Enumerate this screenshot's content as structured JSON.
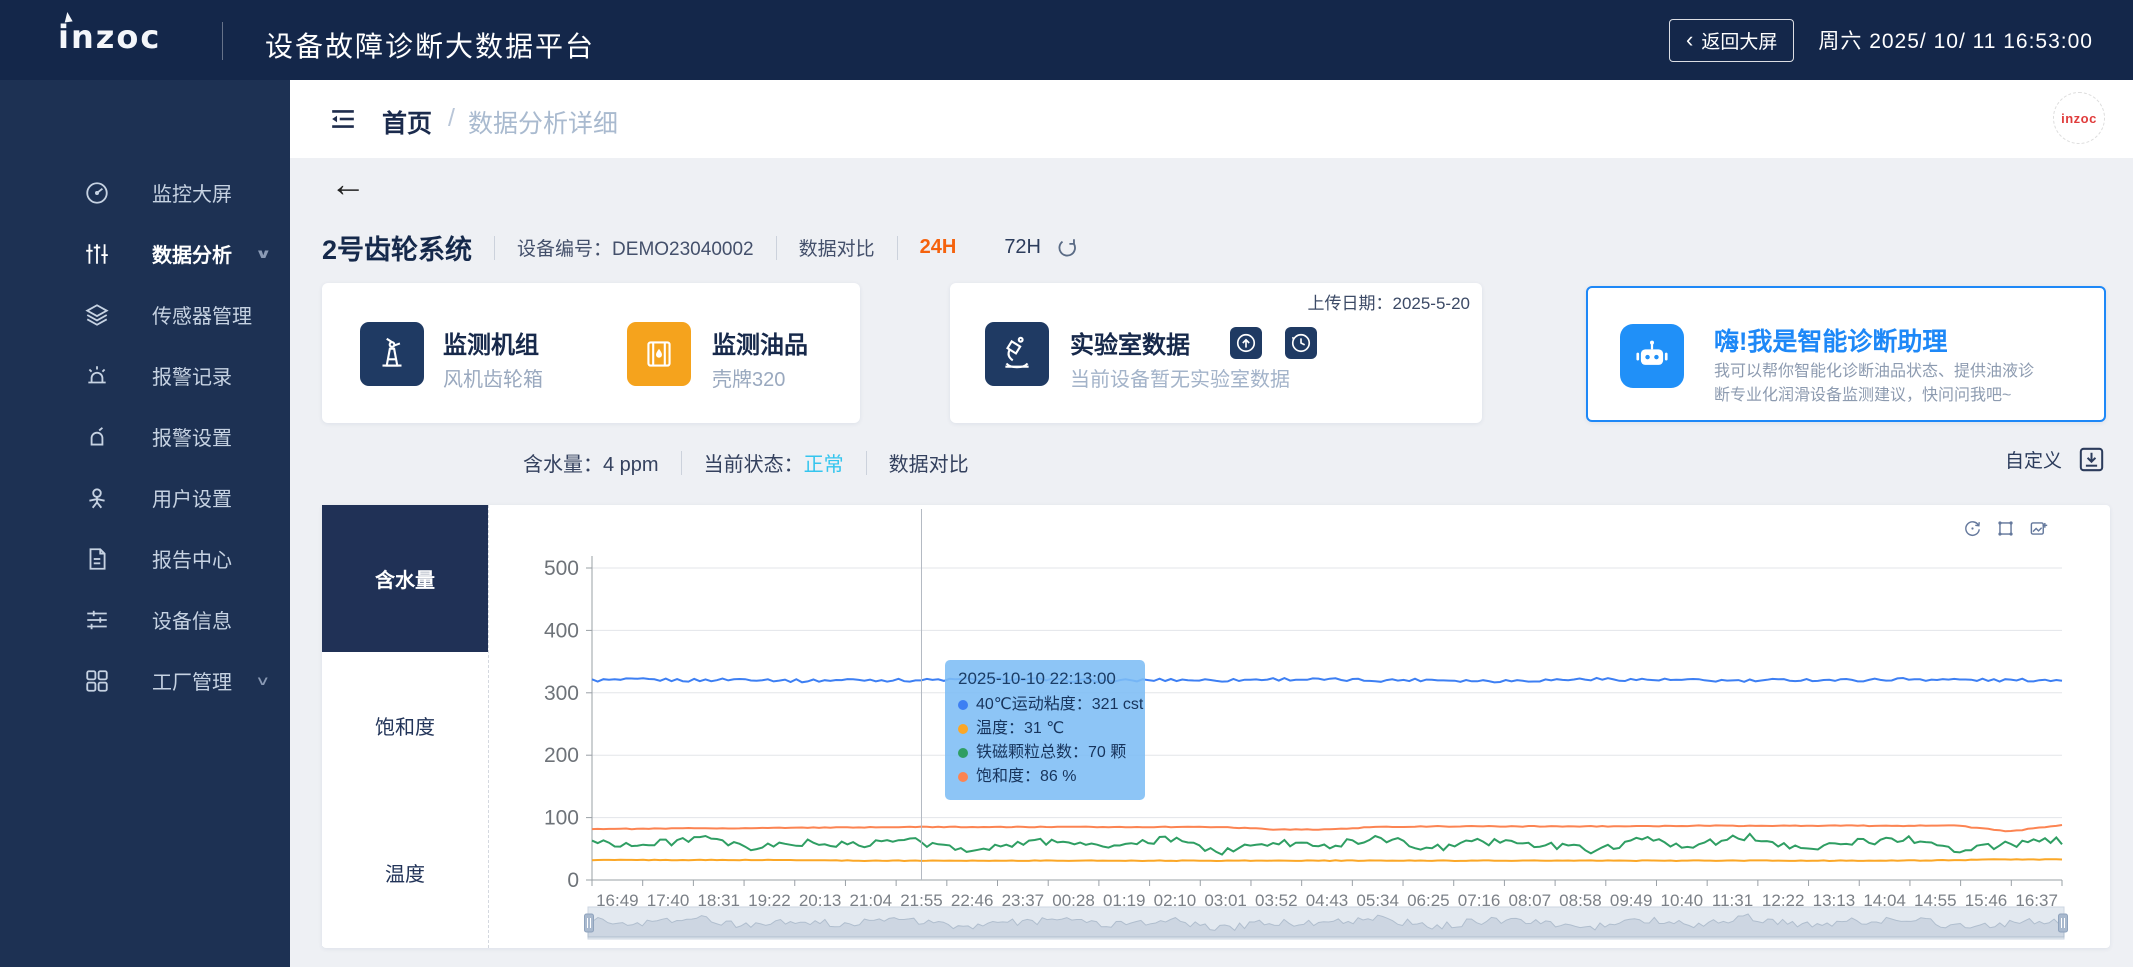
{
  "header": {
    "logo": "inzoc",
    "title": "设备故障诊断大数据平台",
    "back_chevron": "‹",
    "back_button": "返回大屏",
    "datetime": "周六 2025/ 10/ 11 16:53:00"
  },
  "sidebar": {
    "items": [
      {
        "label": "监控大屏",
        "icon": "gauge-icon"
      },
      {
        "label": "数据分析",
        "icon": "analysis-sliders-icon",
        "active": true,
        "chevron": "∨"
      },
      {
        "label": "传感器管理",
        "icon": "layers-icon"
      },
      {
        "label": "报警记录",
        "icon": "siren-icon"
      },
      {
        "label": "报警设置",
        "icon": "alarm-bell-icon"
      },
      {
        "label": "用户设置",
        "icon": "user-icon"
      },
      {
        "label": "报告中心",
        "icon": "report-icon"
      },
      {
        "label": "设备信息",
        "icon": "device-sliders-icon"
      },
      {
        "label": "工厂管理",
        "icon": "grid-icon",
        "chevron": "∨"
      }
    ]
  },
  "breadcrumb": {
    "home": "首页",
    "sep": "/",
    "current": "数据分析详细",
    "avatar_text": "inzoc"
  },
  "device": {
    "back_arrow": "←",
    "name": "2号齿轮系统",
    "code_label": "设备编号：",
    "code": "DEMO23040002",
    "compare": "数据对比",
    "range_24h": "24H",
    "range_72h": "72H"
  },
  "cards": {
    "unit": {
      "title": "监测机组",
      "sub": "风机齿轮箱"
    },
    "oil": {
      "title": "监测油品",
      "sub": "壳牌320"
    },
    "lab": {
      "date_label": "上传日期：",
      "date": "2025-5-20",
      "title": "实验室数据",
      "sub": "当前设备暂无实验室数据"
    },
    "assistant": {
      "title": "嗨!我是智能诊断助理",
      "desc1": "我可以帮你智能化诊断油品状态、提供油液诊",
      "desc2": "断专业化润滑设备监测建议，快问问我吧~"
    }
  },
  "status": {
    "water_label": "含水量：",
    "water_value": "4 ppm",
    "state_label": "当前状态：",
    "state_value": "正常",
    "state_color": "#35c5ee",
    "compare": "数据对比",
    "custom": "自定义"
  },
  "chart_data": {
    "type": "line",
    "tabs": [
      "含水量",
      "饱和度",
      "温度"
    ],
    "active_tab": "含水量",
    "grid": true,
    "legend_position": "none",
    "ylim": [
      0,
      500
    ],
    "y_ticks": [
      0,
      100,
      200,
      300,
      400,
      500
    ],
    "x_labels": [
      "16:49",
      "17:40",
      "18:31",
      "19:22",
      "20:13",
      "21:04",
      "21:55",
      "22:46",
      "23:37",
      "00:28",
      "01:19",
      "02:10",
      "03:01",
      "03:52",
      "04:43",
      "05:34",
      "06:25",
      "07:16",
      "08:07",
      "08:58",
      "09:49",
      "10:40",
      "11:31",
      "12:22",
      "13:13",
      "14:04",
      "14:55",
      "15:46",
      "16:37"
    ],
    "series": [
      {
        "name": "40℃运动粘度",
        "unit": "cst",
        "color": "#3d7ff3",
        "jitter": 2.5,
        "values": [
          320,
          321,
          320,
          322,
          319,
          321,
          320,
          321,
          322,
          320,
          319,
          321,
          320,
          322,
          321,
          320,
          321,
          319,
          320,
          322,
          321,
          320,
          319,
          321,
          320,
          322,
          321,
          320,
          321
        ]
      },
      {
        "name": "温度",
        "unit": "℃",
        "color": "#fba727",
        "jitter": 0.5,
        "values": [
          32,
          32,
          32,
          32,
          32,
          31,
          31,
          31,
          31,
          31,
          31,
          31,
          31,
          31,
          31,
          31,
          31,
          31,
          31,
          31,
          31,
          31,
          31,
          31,
          31,
          31,
          32,
          33,
          33
        ]
      },
      {
        "name": "铁磁颗粒总数",
        "unit": "颗",
        "color": "#2f9e63",
        "jitter": 6,
        "values": [
          62,
          55,
          68,
          50,
          60,
          55,
          65,
          48,
          58,
          63,
          52,
          66,
          45,
          60,
          55,
          68,
          50,
          62,
          57,
          48,
          64,
          55,
          70,
          52,
          60,
          66,
          49,
          58,
          63
        ]
      },
      {
        "name": "饱和度",
        "unit": "%",
        "color": "#fc8452",
        "jitter": 0.6,
        "values": [
          82,
          82,
          83,
          83,
          84,
          84,
          85,
          85,
          85,
          85,
          85,
          85,
          85,
          81,
          81,
          85,
          86,
          86,
          86,
          86,
          86,
          87,
          87,
          87,
          87,
          87,
          87,
          78,
          88
        ]
      }
    ],
    "tooltip": {
      "time": "2025-10-10 22:13:00",
      "x_index": 6,
      "rows": [
        {
          "name": "40℃运动粘度：",
          "value": "321 cst",
          "color": "#3d7ff3"
        },
        {
          "name": "温度：",
          "value": "31 ℃",
          "color": "#fba727"
        },
        {
          "name": "铁磁颗粒总数：",
          "value": "70 颗",
          "color": "#2f9e63"
        },
        {
          "name": "饱和度：",
          "value": "86 %",
          "color": "#fc8452"
        }
      ]
    },
    "toolbox": [
      "restore-icon",
      "box-zoom-icon",
      "save-image-icon"
    ],
    "datazoom": {
      "enabled": true
    }
  }
}
